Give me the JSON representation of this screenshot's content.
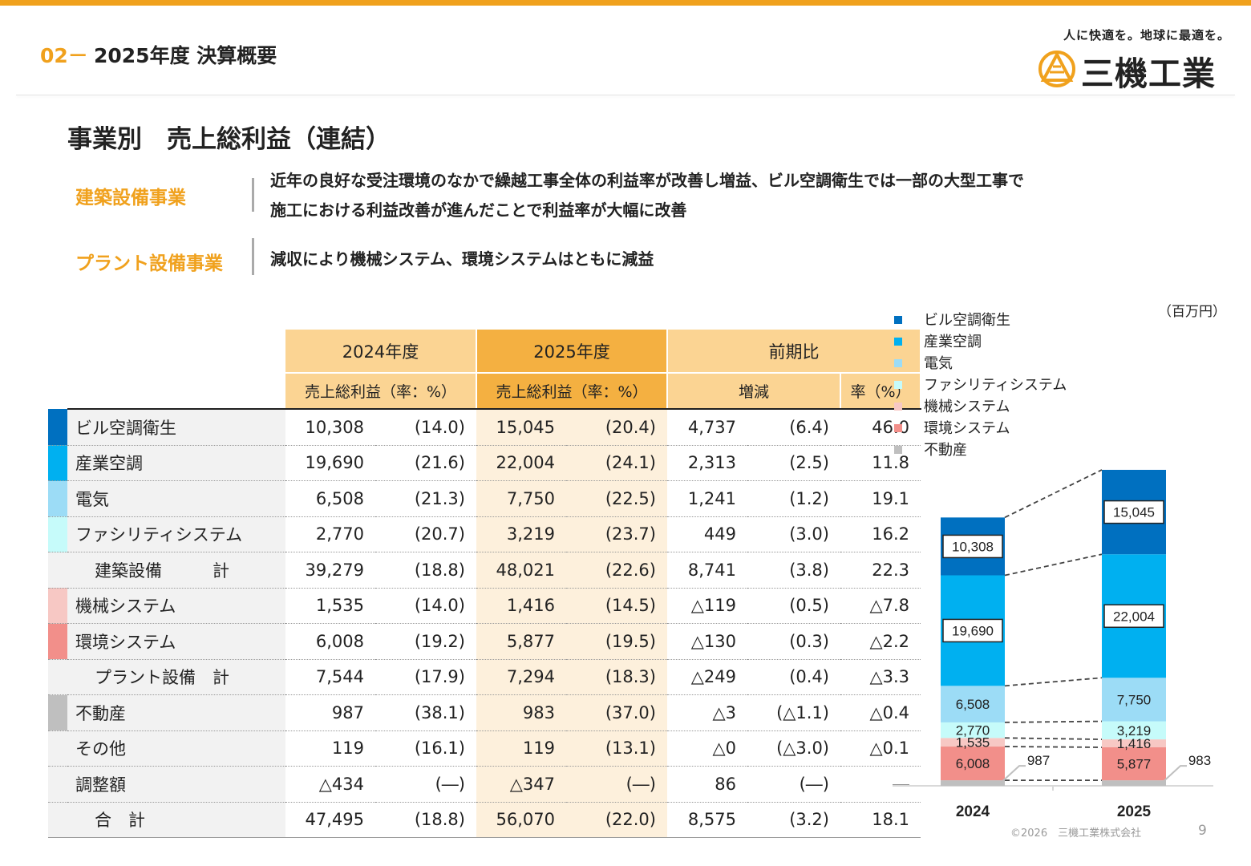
{
  "header": {
    "section_no": "02－",
    "section_title": "2025年度 決算概要",
    "tagline": "人に快適を。地球に最適を。",
    "company": "三機工業"
  },
  "page_title": "事業別　売上総利益（連結）",
  "segments": [
    {
      "label": "建築設備事業",
      "desc": [
        "近年の良好な受注環境のなかで繰越工事全体の利益率が改善し増益、ビル空調衛生では一部の大型工事で",
        "施工における利益改善が進んだことで利益率が大幅に改善"
      ]
    },
    {
      "label": "プラント設備事業",
      "desc": [
        "減収により機械システム、環境システムはともに減益"
      ]
    }
  ],
  "unit": "（百万円）",
  "table": {
    "year_prev": "2024年度",
    "year_cur": "2025年度",
    "yoy": "前期比",
    "gp_rate": "売上総利益（率：%）",
    "change": "増減",
    "rate_pct": "率（%）",
    "rows": [
      {
        "label": "ビル空調衛生",
        "color": "#0070c0",
        "sub": false,
        "v": [
          "10,308",
          "(14.0)",
          "15,045",
          "(20.4)",
          "4,737",
          "(6.4)",
          "46.0"
        ]
      },
      {
        "label": "産業空調",
        "color": "#00b0f0",
        "sub": false,
        "v": [
          "19,690",
          "(21.6)",
          "22,004",
          "(24.1)",
          "2,313",
          "(2.5)",
          "11.8"
        ]
      },
      {
        "label": "電気",
        "color": "#9cdcf6",
        "sub": false,
        "v": [
          "6,508",
          "(21.3)",
          "7,750",
          "(22.5)",
          "1,241",
          "(1.2)",
          "19.1"
        ]
      },
      {
        "label": "ファシリティシステム",
        "color": "#c6fbfa",
        "sub": false,
        "v": [
          "2,770",
          "(20.7)",
          "3,219",
          "(23.7)",
          "449",
          "(3.0)",
          "16.2"
        ]
      },
      {
        "label": "建築設備　　　計",
        "color": "#f2f2f2",
        "sub": true,
        "v": [
          "39,279",
          "(18.8)",
          "48,021",
          "(22.6)",
          "8,741",
          "(3.8)",
          "22.3"
        ]
      },
      {
        "label": "機械システム",
        "color": "#f7c8c4",
        "sub": false,
        "v": [
          "1,535",
          "(14.0)",
          "1,416",
          "(14.5)",
          "△119",
          "(0.5)",
          "△7.8"
        ]
      },
      {
        "label": "環境システム",
        "color": "#f28f8a",
        "sub": false,
        "v": [
          "6,008",
          "(19.2)",
          "5,877",
          "(19.5)",
          "△130",
          "(0.3)",
          "△2.2"
        ]
      },
      {
        "label": "プラント設備　計",
        "color": "#f2f2f2",
        "sub": true,
        "v": [
          "7,544",
          "(17.9)",
          "7,294",
          "(18.3)",
          "△249",
          "(0.4)",
          "△3.3"
        ]
      },
      {
        "label": "不動産",
        "color": "#bfbfbf",
        "sub": false,
        "v": [
          "987",
          "(38.1)",
          "983",
          "(37.0)",
          "△3",
          "(△1.1)",
          "△0.4"
        ]
      },
      {
        "label": "その他",
        "color": "#f2f2f2",
        "sub": false,
        "v": [
          "119",
          "(16.1)",
          "119",
          "(13.1)",
          "△0",
          "(△3.0)",
          "△0.1"
        ]
      },
      {
        "label": "調整額",
        "color": "#f2f2f2",
        "sub": false,
        "v": [
          "△434",
          "(―)",
          "△347",
          "(―)",
          "86",
          "(―)",
          "―"
        ]
      },
      {
        "label": "合　計",
        "color": "#f2f2f2",
        "sub": true,
        "v": [
          "47,495",
          "(18.8)",
          "56,070",
          "(22.0)",
          "8,575",
          "(3.2)",
          "18.1"
        ]
      }
    ]
  },
  "chart_data": {
    "type": "bar",
    "stacked": true,
    "categories": [
      "2024",
      "2025"
    ],
    "series": [
      {
        "name": "不動産",
        "color": "#bfbfbf",
        "values": [
          987,
          983
        ],
        "labels": [
          "987",
          "983"
        ]
      },
      {
        "name": "環境システム",
        "color": "#f28f8a",
        "values": [
          6008,
          5877
        ],
        "labels": [
          "6,008",
          "5,877"
        ]
      },
      {
        "name": "機械システム",
        "color": "#f7c8c4",
        "values": [
          1535,
          1416
        ],
        "labels": [
          "1,535",
          "1,416"
        ]
      },
      {
        "name": "ファシリティシステム",
        "color": "#c6fbfa",
        "values": [
          2770,
          3219
        ],
        "labels": [
          "2,770",
          "3,219"
        ]
      },
      {
        "name": "電気",
        "color": "#9cdcf6",
        "values": [
          6508,
          7750
        ],
        "labels": [
          "6,508",
          "7,750"
        ]
      },
      {
        "name": "産業空調",
        "color": "#00b0f0",
        "values": [
          19690,
          22004
        ],
        "labels": [
          "19,690",
          "22,004"
        ]
      },
      {
        "name": "ビル空調衛生",
        "color": "#0070c0",
        "values": [
          10308,
          15045
        ],
        "labels": [
          "10,308",
          "15,045"
        ]
      }
    ],
    "legend_order": [
      "ビル空調衛生",
      "産業空調",
      "電気",
      "ファシリティシステム",
      "機械システム",
      "環境システム",
      "不動産"
    ],
    "legend_position": "top-left"
  },
  "footer": "©2026　三機工業株式会社",
  "page_number": "9"
}
